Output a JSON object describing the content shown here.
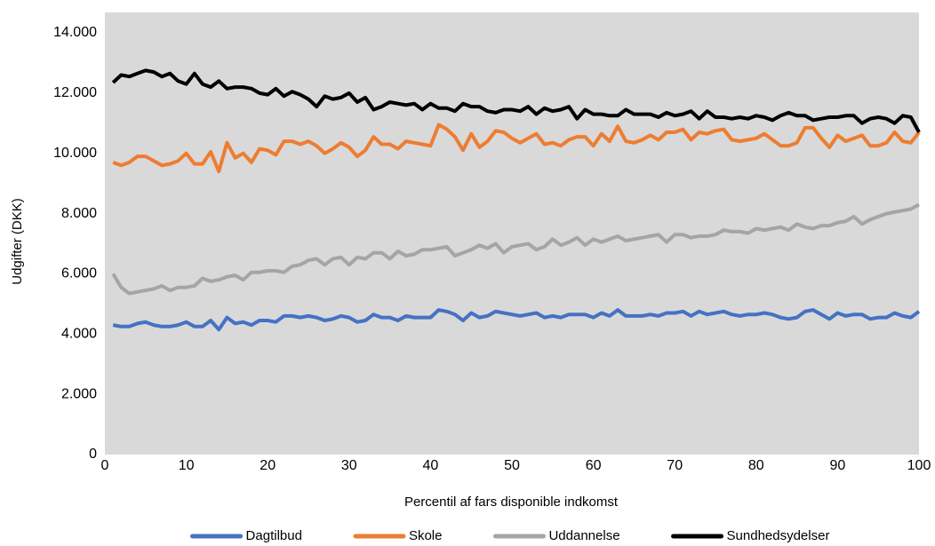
{
  "chart_data": {
    "type": "line",
    "xlabel": "Percentil af fars disponible indkomst",
    "ylabel": "Udgifter (DKK)",
    "x": [
      1,
      2,
      3,
      4,
      5,
      6,
      7,
      8,
      9,
      10,
      11,
      12,
      13,
      14,
      15,
      16,
      17,
      18,
      19,
      20,
      21,
      22,
      23,
      24,
      25,
      26,
      27,
      28,
      29,
      30,
      31,
      32,
      33,
      34,
      35,
      36,
      37,
      38,
      39,
      40,
      41,
      42,
      43,
      44,
      45,
      46,
      47,
      48,
      49,
      50,
      51,
      52,
      53,
      54,
      55,
      56,
      57,
      58,
      59,
      60,
      61,
      62,
      63,
      64,
      65,
      66,
      67,
      68,
      69,
      70,
      71,
      72,
      73,
      74,
      75,
      76,
      77,
      78,
      79,
      80,
      81,
      82,
      83,
      84,
      85,
      86,
      87,
      88,
      89,
      90,
      91,
      92,
      93,
      94,
      95,
      96,
      97,
      98,
      99,
      100
    ],
    "series": [
      {
        "name": "Dagtilbud",
        "color": "#4472c4",
        "values": [
          4300,
          4250,
          4250,
          4350,
          4400,
          4300,
          4250,
          4250,
          4300,
          4400,
          4250,
          4250,
          4450,
          4150,
          4550,
          4350,
          4400,
          4300,
          4450,
          4450,
          4400,
          4600,
          4600,
          4550,
          4600,
          4550,
          4450,
          4500,
          4600,
          4550,
          4400,
          4450,
          4650,
          4550,
          4550,
          4450,
          4600,
          4550,
          4550,
          4550,
          4800,
          4750,
          4650,
          4450,
          4700,
          4550,
          4600,
          4750,
          4700,
          4650,
          4600,
          4650,
          4700,
          4550,
          4600,
          4550,
          4650,
          4650,
          4650,
          4550,
          4700,
          4600,
          4800,
          4600,
          4600,
          4600,
          4650,
          4600,
          4700,
          4700,
          4750,
          4600,
          4750,
          4650,
          4700,
          4750,
          4650,
          4600,
          4650,
          4650,
          4700,
          4650,
          4550,
          4500,
          4550,
          4750,
          4800,
          4650,
          4500,
          4700,
          4600,
          4650,
          4650,
          4500,
          4550,
          4550,
          4700,
          4600,
          4550,
          4750
        ]
      },
      {
        "name": "Skole",
        "color": "#ed7d31",
        "values": [
          9700,
          9600,
          9700,
          9900,
          9900,
          9750,
          9600,
          9650,
          9750,
          10000,
          9650,
          9650,
          10050,
          9400,
          10350,
          9850,
          10000,
          9700,
          10150,
          10100,
          9950,
          10400,
          10400,
          10300,
          10400,
          10250,
          10000,
          10150,
          10350,
          10200,
          9900,
          10100,
          10550,
          10300,
          10300,
          10150,
          10400,
          10350,
          10300,
          10250,
          10950,
          10800,
          10550,
          10100,
          10650,
          10200,
          10400,
          10750,
          10700,
          10500,
          10350,
          10500,
          10650,
          10300,
          10350,
          10250,
          10450,
          10550,
          10550,
          10250,
          10650,
          10400,
          10900,
          10400,
          10350,
          10450,
          10600,
          10450,
          10700,
          10700,
          10800,
          10450,
          10700,
          10650,
          10750,
          10800,
          10450,
          10400,
          10450,
          10500,
          10650,
          10450,
          10250,
          10250,
          10350,
          10850,
          10850,
          10500,
          10200,
          10600,
          10400,
          10500,
          10600,
          10250,
          10250,
          10350,
          10700,
          10400,
          10350,
          10700
        ]
      },
      {
        "name": "Uddannelse",
        "color": "#a5a5a5",
        "values": [
          6000,
          5550,
          5350,
          5400,
          5450,
          5500,
          5600,
          5450,
          5550,
          5550,
          5600,
          5850,
          5750,
          5800,
          5900,
          5950,
          5800,
          6050,
          6050,
          6100,
          6100,
          6050,
          6250,
          6300,
          6450,
          6500,
          6300,
          6500,
          6550,
          6300,
          6550,
          6500,
          6700,
          6700,
          6500,
          6750,
          6600,
          6650,
          6800,
          6800,
          6850,
          6900,
          6600,
          6700,
          6800,
          6950,
          6850,
          7000,
          6700,
          6900,
          6950,
          7000,
          6800,
          6900,
          7150,
          6950,
          7050,
          7200,
          6950,
          7150,
          7050,
          7150,
          7250,
          7100,
          7150,
          7200,
          7250,
          7300,
          7050,
          7300,
          7300,
          7200,
          7250,
          7250,
          7300,
          7450,
          7400,
          7400,
          7350,
          7500,
          7450,
          7500,
          7550,
          7450,
          7650,
          7550,
          7500,
          7600,
          7600,
          7700,
          7750,
          7900,
          7650,
          7800,
          7900,
          8000,
          8050,
          8100,
          8150,
          8300
        ]
      },
      {
        "name": "Sundhedsydelser",
        "color": "#000000",
        "values": [
          12350,
          12600,
          12550,
          12650,
          12750,
          12700,
          12550,
          12650,
          12400,
          12300,
          12650,
          12300,
          12200,
          12400,
          12150,
          12200,
          12200,
          12150,
          12000,
          11950,
          12150,
          11900,
          12050,
          11950,
          11800,
          11550,
          11900,
          11800,
          11850,
          12000,
          11700,
          11850,
          11450,
          11550,
          11700,
          11650,
          11600,
          11650,
          11450,
          11650,
          11500,
          11500,
          11400,
          11650,
          11550,
          11550,
          11400,
          11350,
          11450,
          11450,
          11400,
          11550,
          11300,
          11500,
          11400,
          11450,
          11550,
          11150,
          11450,
          11300,
          11300,
          11250,
          11250,
          11450,
          11300,
          11300,
          11300,
          11200,
          11350,
          11250,
          11300,
          11400,
          11150,
          11400,
          11200,
          11200,
          11150,
          11200,
          11150,
          11250,
          11200,
          11100,
          11250,
          11350,
          11250,
          11250,
          11100,
          11150,
          11200,
          11200,
          11250,
          11250,
          11000,
          11150,
          11200,
          11150,
          11000,
          11250,
          11200,
          10700
        ]
      }
    ],
    "xlim": [
      0,
      100
    ],
    "xticks": [
      0,
      10,
      20,
      30,
      40,
      50,
      60,
      70,
      80,
      90,
      100
    ],
    "ylim": [
      0,
      14000
    ],
    "yticks": [
      0,
      {
        "value": 2000,
        "label": "2.000"
      },
      {
        "value": 4000,
        "label": "4.000"
      },
      {
        "value": 6000,
        "label": "6.000"
      },
      {
        "value": 8000,
        "label": "8.000"
      },
      {
        "value": 10000,
        "label": "10.000"
      },
      {
        "value": 12000,
        "label": "12.000"
      },
      {
        "value": 14000,
        "label": "14.000"
      }
    ],
    "grid": false,
    "legend": "bottom",
    "background": "#d9d9d9"
  }
}
